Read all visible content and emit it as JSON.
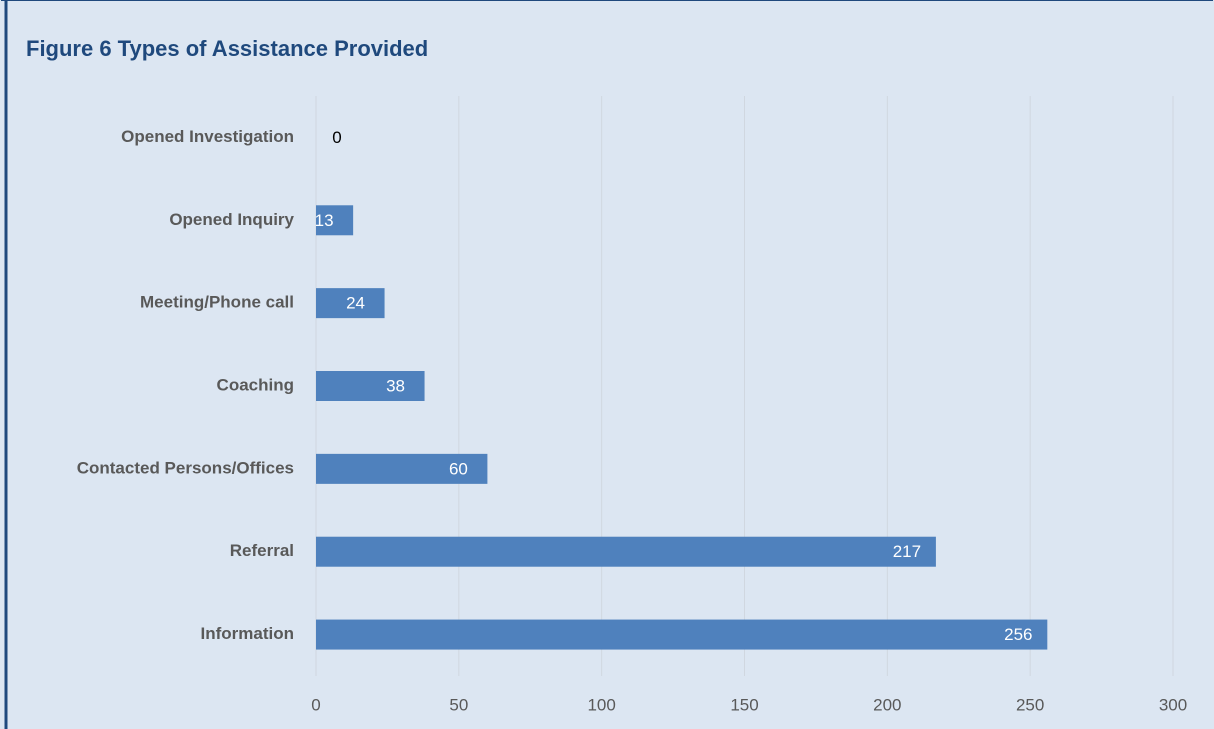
{
  "chart_data": {
    "type": "bar",
    "orientation": "horizontal",
    "title": "Figure 6 Types of Assistance Provided",
    "categories": [
      "Opened Investigation",
      "Opened Inquiry",
      "Meeting/Phone call",
      "Coaching",
      "Contacted Persons/Offices",
      "Referral",
      "Information"
    ],
    "values": [
      0,
      13,
      24,
      38,
      60,
      217,
      256
    ],
    "color": "#4f81bd",
    "xlim": [
      0,
      300
    ],
    "xticks": [
      0,
      50,
      100,
      150,
      200,
      250,
      300
    ],
    "grid": true
  }
}
